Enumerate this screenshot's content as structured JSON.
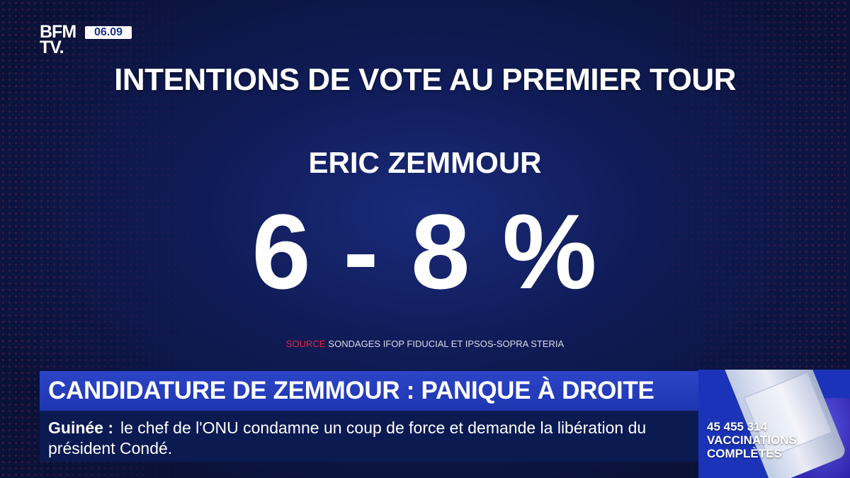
{
  "logo": {
    "line1": "BFM",
    "line2": "TV."
  },
  "clock": "06.09",
  "graphic": {
    "title": "INTENTIONS DE VOTE AU PREMIER TOUR",
    "candidate": "ERIC ZEMMOUR",
    "value": "6 - 8 %",
    "source_label": "SOURCE",
    "source_text": "SONDAGES IFOP FIDUCIAL ET IPSOS-SOPRA STERIA"
  },
  "headline": "CANDIDATURE DE ZEMMOUR : PANIQUE À DROITE",
  "ticker": {
    "label": "Guinée :",
    "text": "le chef de l'ONU condamne un coup de force et demande la libération du président Condé."
  },
  "side_panel": {
    "count": "45 455 314",
    "label_line1": "VACCINATIONS",
    "label_line2": "COMPLÈTES"
  },
  "colors": {
    "background": "#101c58",
    "headline_bar": "#2c45c8",
    "ticker_bg": "#0c1a52",
    "source_accent": "#e3263a",
    "side_panel": "#1b33b8"
  }
}
